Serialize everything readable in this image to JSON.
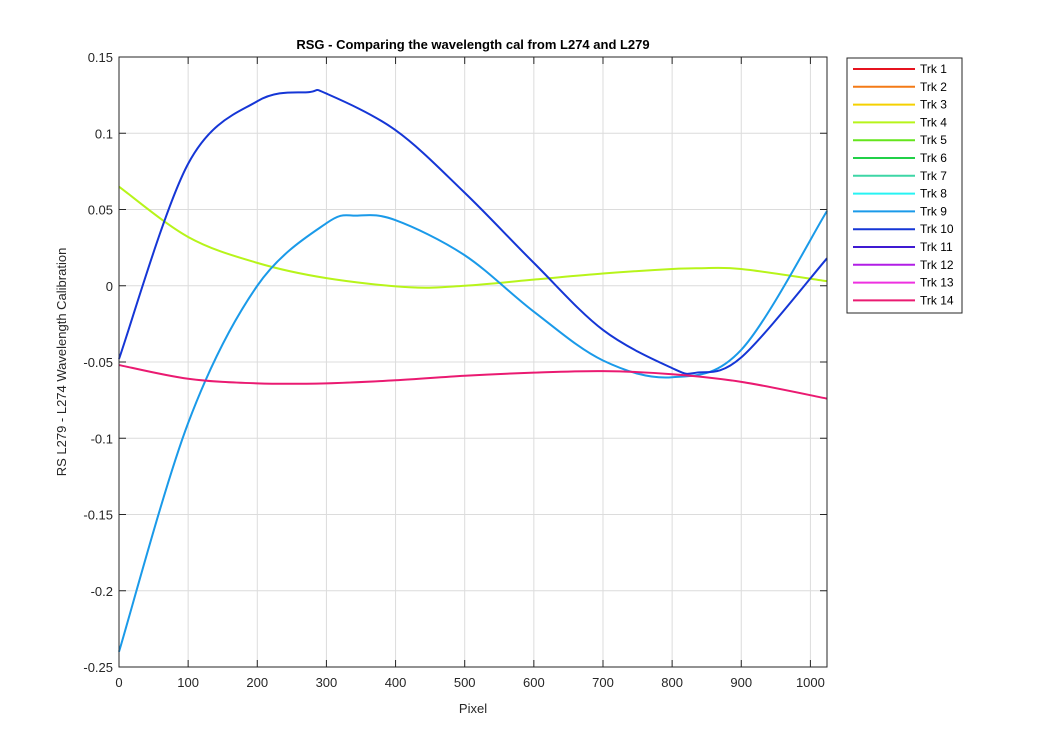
{
  "chart_data": {
    "type": "line",
    "title": "RSG - Comparing the wavelength cal from L274 and L279",
    "xlabel": "Pixel",
    "ylabel": "RS L279 - L274 Wavelength Calibration",
    "xlim": [
      0,
      1024
    ],
    "ylim": [
      -0.25,
      0.15
    ],
    "xticks": [
      0,
      100,
      200,
      300,
      400,
      500,
      600,
      700,
      800,
      900,
      1000
    ],
    "yticks": [
      -0.25,
      -0.2,
      -0.15,
      -0.1,
      -0.05,
      0,
      0.05,
      0.1,
      0.15
    ],
    "xtick_labels": [
      "0",
      "100",
      "200",
      "300",
      "400",
      "500",
      "600",
      "700",
      "800",
      "900",
      "1000"
    ],
    "ytick_labels": [
      "-0.25",
      "-0.2",
      "-0.15",
      "-0.1",
      "-0.05",
      "0",
      "0.05",
      "0.1",
      "0.15"
    ],
    "grid": true,
    "legend_position": "outside-right",
    "series": [
      {
        "name": "Trk 1",
        "color": "#e6131f",
        "x": [],
        "y": []
      },
      {
        "name": "Trk 2",
        "color": "#f47a16",
        "x": [],
        "y": []
      },
      {
        "name": "Trk 3",
        "color": "#f5d100",
        "x": [],
        "y": []
      },
      {
        "name": "Trk 4",
        "color": "#b7f41a",
        "x": [
          0,
          100,
          200,
          300,
          420,
          500,
          600,
          700,
          800,
          840,
          900,
          1024
        ],
        "y": [
          0.065,
          0.032,
          0.015,
          0.005,
          -0.001,
          0.0,
          0.004,
          0.008,
          0.011,
          0.0115,
          0.011,
          0.003
        ]
      },
      {
        "name": "Trk 5",
        "color": "#64e51c",
        "x": [],
        "y": []
      },
      {
        "name": "Trk 6",
        "color": "#21d048",
        "x": [],
        "y": []
      },
      {
        "name": "Trk 7",
        "color": "#3dd6a6",
        "x": [],
        "y": []
      },
      {
        "name": "Trk 8",
        "color": "#28f3f3",
        "x": [],
        "y": []
      },
      {
        "name": "Trk 9",
        "color": "#1a9ae9",
        "x": [
          0,
          100,
          200,
          300,
          345,
          400,
          500,
          600,
          700,
          800,
          900,
          1024
        ],
        "y": [
          -0.24,
          -0.09,
          0.0,
          0.041,
          0.046,
          0.043,
          0.02,
          -0.017,
          -0.049,
          -0.06,
          -0.042,
          0.049
        ]
      },
      {
        "name": "Trk 10",
        "color": "#1536d6",
        "x": [
          0,
          100,
          200,
          275,
          300,
          400,
          500,
          600,
          700,
          800,
          835,
          900,
          1024
        ],
        "y": [
          -0.048,
          0.08,
          0.121,
          0.127,
          0.126,
          0.102,
          0.061,
          0.015,
          -0.029,
          -0.054,
          -0.057,
          -0.047,
          0.018
        ]
      },
      {
        "name": "Trk 11",
        "color": "#3f1ad2",
        "x": [],
        "y": []
      },
      {
        "name": "Trk 12",
        "color": "#b11ee6",
        "x": [],
        "y": []
      },
      {
        "name": "Trk 13",
        "color": "#ee31e0",
        "x": [],
        "y": []
      },
      {
        "name": "Trk 14",
        "color": "#ea1a71",
        "x": [
          0,
          100,
          200,
          300,
          400,
          500,
          600,
          700,
          800,
          900,
          1024
        ],
        "y": [
          -0.052,
          -0.061,
          -0.064,
          -0.064,
          -0.062,
          -0.059,
          -0.057,
          -0.056,
          -0.058,
          -0.063,
          -0.074
        ]
      }
    ]
  }
}
